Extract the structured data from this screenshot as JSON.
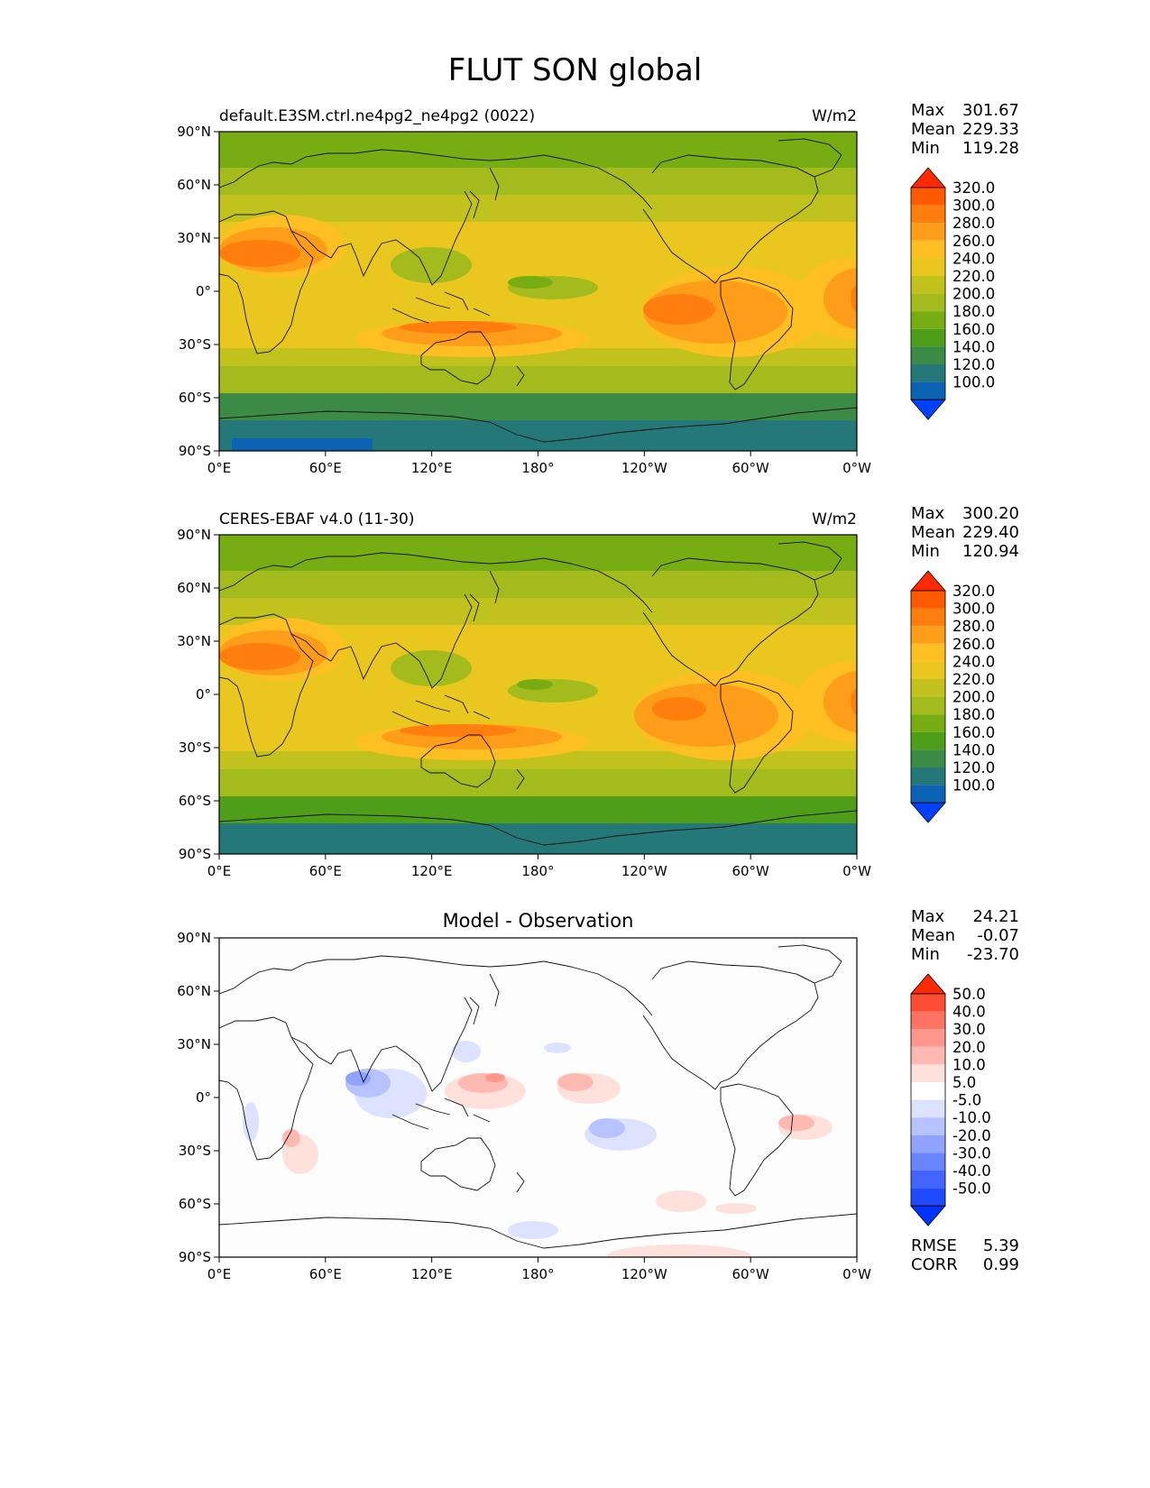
{
  "title": "FLUT SON global",
  "lat_ticks": [
    "90°N",
    "60°N",
    "30°N",
    "0°",
    "30°S",
    "60°S",
    "90°S"
  ],
  "lon_ticks": [
    "0°E",
    "60°E",
    "120°E",
    "180°",
    "120°W",
    "60°W",
    "0°W"
  ],
  "panels": [
    {
      "name": "model",
      "left_title": "default.E3SM.ctrl.ne4pg2_ne4pg2 (0022)",
      "right_title": "W/m2",
      "center_title": "",
      "stats": [
        [
          "Max",
          "301.67"
        ],
        [
          "Mean",
          "229.33"
        ],
        [
          "Min",
          "119.28"
        ]
      ],
      "extra_stats": [],
      "colorbar": {
        "labels": [
          "320.0",
          "300.0",
          "280.0",
          "260.0",
          "240.0",
          "220.0",
          "200.0",
          "180.0",
          "160.0",
          "140.0",
          "120.0",
          "100.0"
        ],
        "colors": [
          "#ff2a00",
          "#ff5a00",
          "#ff7e0d",
          "#fe9d19",
          "#fdbf21",
          "#e9c71f",
          "#c2c21e",
          "#a3bb1c",
          "#78ac13",
          "#4e9e1a",
          "#3b8a46",
          "#257878",
          "#0d63b3",
          "#0140ff"
        ]
      }
    },
    {
      "name": "obs",
      "left_title": "CERES-EBAF v4.0 (11-30)",
      "right_title": "W/m2",
      "center_title": "",
      "stats": [
        [
          "Max",
          "300.20"
        ],
        [
          "Mean",
          "229.40"
        ],
        [
          "Min",
          "120.94"
        ]
      ],
      "extra_stats": [],
      "colorbar": {
        "labels": [
          "320.0",
          "300.0",
          "280.0",
          "260.0",
          "240.0",
          "220.0",
          "200.0",
          "180.0",
          "160.0",
          "140.0",
          "120.0",
          "100.0"
        ],
        "colors": [
          "#ff2a00",
          "#ff5a00",
          "#ff7e0d",
          "#fe9d19",
          "#fdbf21",
          "#e9c71f",
          "#c2c21e",
          "#a3bb1c",
          "#78ac13",
          "#4e9e1a",
          "#3b8a46",
          "#257878",
          "#0d63b3",
          "#0140ff"
        ]
      }
    },
    {
      "name": "diff",
      "left_title": "",
      "right_title": "",
      "center_title": "Model - Observation",
      "stats": [
        [
          "Max",
          "24.21"
        ],
        [
          "Mean",
          "-0.07"
        ],
        [
          "Min",
          "-23.70"
        ]
      ],
      "extra_stats": [
        [
          "RMSE",
          "5.39"
        ],
        [
          "CORR",
          "0.99"
        ]
      ],
      "colorbar": {
        "labels": [
          "50.0",
          "40.0",
          "30.0",
          "20.0",
          "10.0",
          "5.0",
          "-5.0",
          "-10.0",
          "-20.0",
          "-30.0",
          "-40.0",
          "-50.0"
        ],
        "colors": [
          "#ff2a00",
          "#ff4d33",
          "#ff7363",
          "#ff968c",
          "#ffb9b3",
          "#ffe1dc",
          "#ffffff",
          "#dde3ff",
          "#b6c3ff",
          "#8fa3ff",
          "#6984ff",
          "#4364ff",
          "#1f4aff",
          "#0033ff"
        ]
      }
    }
  ]
}
